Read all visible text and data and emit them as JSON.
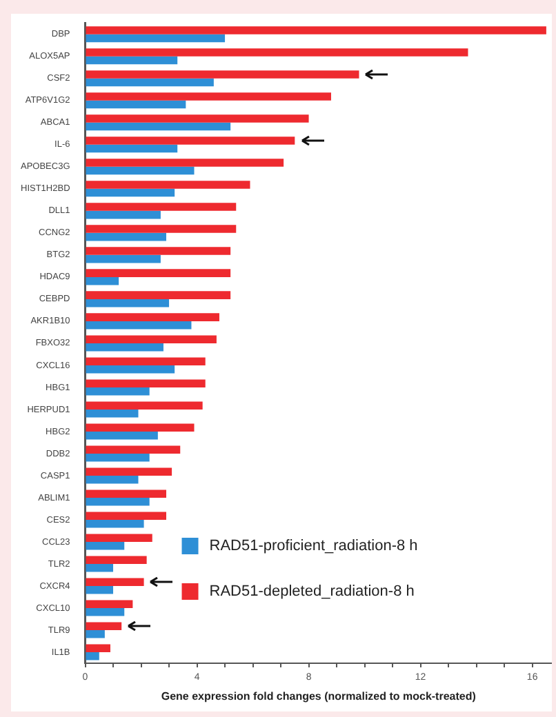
{
  "chart_data": {
    "type": "bar",
    "orientation": "horizontal",
    "xlabel": "Gene expression fold changes (normalized to mock-treated)",
    "categories": [
      "DBP",
      "ALOX5AP",
      "CSF2",
      "ATP6V1G2",
      "ABCA1",
      "IL-6",
      "APOBEC3G",
      "HIST1H2BD",
      "DLL1",
      "CCNG2",
      "BTG2",
      "HDAC9",
      "CEBPD",
      "AKR1B10",
      "FBXO32",
      "CXCL16",
      "HBG1",
      "HERPUD1",
      "HBG2",
      "DDB2",
      "CASP1",
      "ABLIM1",
      "CES2",
      "CCL23",
      "TLR2",
      "CXCR4",
      "CXCL10",
      "TLR9",
      "IL1B"
    ],
    "series": [
      {
        "name": "RAD51-depleted_radiation-8 h",
        "color": "#ee2a2f",
        "values": [
          16.5,
          13.7,
          9.8,
          8.8,
          8.0,
          7.5,
          7.1,
          5.9,
          5.4,
          5.4,
          5.2,
          5.2,
          5.2,
          4.8,
          4.7,
          4.3,
          4.3,
          4.2,
          3.9,
          3.4,
          3.1,
          2.9,
          2.9,
          2.4,
          2.2,
          2.1,
          1.7,
          1.3,
          0.9
        ]
      },
      {
        "name": "RAD51-proficient_radiation-8 h",
        "color": "#2e8fd6",
        "values": [
          5.0,
          3.3,
          4.6,
          3.6,
          5.2,
          3.3,
          3.9,
          3.2,
          2.7,
          2.9,
          2.7,
          1.2,
          3.0,
          3.8,
          2.8,
          3.2,
          2.3,
          1.9,
          2.6,
          2.3,
          1.9,
          2.3,
          2.1,
          1.4,
          1.0,
          1.0,
          1.4,
          0.7,
          0.5
        ]
      }
    ],
    "xlim": [
      0,
      16.7
    ],
    "xticks": [
      0,
      {
        "value": 1,
        "label": null
      },
      {
        "value": 2,
        "label": null
      },
      {
        "value": 3,
        "label": null
      },
      4,
      {
        "value": 5,
        "label": null
      },
      {
        "value": 6,
        "label": null
      },
      {
        "value": 7,
        "label": null
      },
      8,
      {
        "value": 9,
        "label": null
      },
      {
        "value": 10,
        "label": null
      },
      {
        "value": 11,
        "label": null
      },
      12,
      {
        "value": 13,
        "label": null
      },
      {
        "value": 14,
        "label": null
      },
      {
        "value": 15,
        "label": null
      },
      16
    ],
    "grid": false,
    "legend": "bottom"
  }
}
